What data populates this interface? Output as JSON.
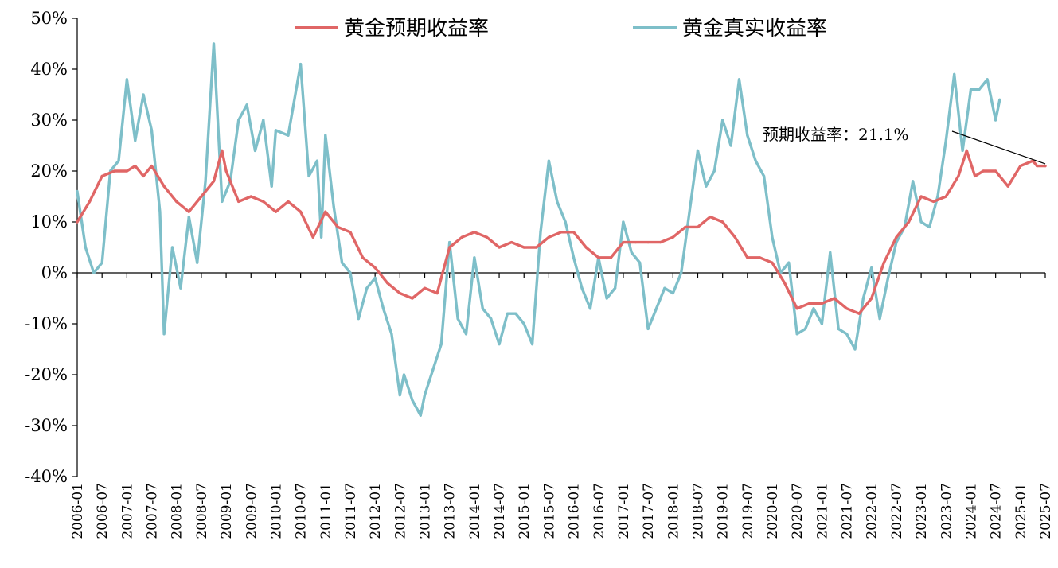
{
  "chart_data": {
    "type": "line",
    "title": "",
    "xlabel": "",
    "ylabel": "",
    "ylim": [
      -40,
      50
    ],
    "yticks": [
      50,
      40,
      30,
      20,
      10,
      0,
      -10,
      -20,
      -30,
      -40
    ],
    "ytick_labels": [
      "50%",
      "40%",
      "30%",
      "20%",
      "10%",
      "0%",
      "-10%",
      "-20%",
      "-30%",
      "-40%"
    ],
    "x_start": "2006-01",
    "x_end": "2025-07",
    "x_tick_labels": [
      "2006-01",
      "2006-07",
      "2007-01",
      "2007-07",
      "2008-01",
      "2008-07",
      "2009-01",
      "2009-07",
      "2010-01",
      "2010-07",
      "2011-01",
      "2011-07",
      "2012-01",
      "2012-07",
      "2013-01",
      "2013-07",
      "2014-01",
      "2014-07",
      "2015-01",
      "2015-07",
      "2016-01",
      "2016-07",
      "2017-01",
      "2017-07",
      "2018-01",
      "2018-07",
      "2019-01",
      "2019-07",
      "2020-01",
      "2020-07",
      "2021-01",
      "2021-07",
      "2022-01",
      "2022-07",
      "2023-01",
      "2023-07",
      "2024-01",
      "2024-07",
      "2025-01",
      "2025-07"
    ],
    "legend": "top-center",
    "series": [
      {
        "name": "黄金预期收益率",
        "color": "#e06666",
        "points": [
          [
            "2006-01",
            10
          ],
          [
            "2006-04",
            14
          ],
          [
            "2006-07",
            19
          ],
          [
            "2006-10",
            20
          ],
          [
            "2007-01",
            20
          ],
          [
            "2007-03",
            21
          ],
          [
            "2007-05",
            19
          ],
          [
            "2007-07",
            21
          ],
          [
            "2007-10",
            17
          ],
          [
            "2008-01",
            14
          ],
          [
            "2008-04",
            12
          ],
          [
            "2008-07",
            15
          ],
          [
            "2008-10",
            18
          ],
          [
            "2008-12",
            24
          ],
          [
            "2009-01",
            20
          ],
          [
            "2009-04",
            14
          ],
          [
            "2009-07",
            15
          ],
          [
            "2009-10",
            14
          ],
          [
            "2010-01",
            12
          ],
          [
            "2010-04",
            14
          ],
          [
            "2010-07",
            12
          ],
          [
            "2010-10",
            7
          ],
          [
            "2011-01",
            12
          ],
          [
            "2011-04",
            9
          ],
          [
            "2011-07",
            8
          ],
          [
            "2011-10",
            3
          ],
          [
            "2012-01",
            1
          ],
          [
            "2012-04",
            -2
          ],
          [
            "2012-07",
            -4
          ],
          [
            "2012-10",
            -5
          ],
          [
            "2013-01",
            -3
          ],
          [
            "2013-04",
            -4
          ],
          [
            "2013-07",
            5
          ],
          [
            "2013-10",
            7
          ],
          [
            "2014-01",
            8
          ],
          [
            "2014-04",
            7
          ],
          [
            "2014-07",
            5
          ],
          [
            "2014-10",
            6
          ],
          [
            "2015-01",
            5
          ],
          [
            "2015-04",
            5
          ],
          [
            "2015-07",
            7
          ],
          [
            "2015-10",
            8
          ],
          [
            "2016-01",
            8
          ],
          [
            "2016-04",
            5
          ],
          [
            "2016-07",
            3
          ],
          [
            "2016-10",
            3
          ],
          [
            "2017-01",
            6
          ],
          [
            "2017-04",
            6
          ],
          [
            "2017-07",
            6
          ],
          [
            "2017-10",
            6
          ],
          [
            "2018-01",
            7
          ],
          [
            "2018-04",
            9
          ],
          [
            "2018-07",
            9
          ],
          [
            "2018-10",
            11
          ],
          [
            "2019-01",
            10
          ],
          [
            "2019-04",
            7
          ],
          [
            "2019-07",
            3
          ],
          [
            "2019-10",
            3
          ],
          [
            "2020-01",
            2
          ],
          [
            "2020-04",
            -2
          ],
          [
            "2020-07",
            -7
          ],
          [
            "2020-10",
            -6
          ],
          [
            "2021-01",
            -6
          ],
          [
            "2021-04",
            -5
          ],
          [
            "2021-07",
            -7
          ],
          [
            "2021-10",
            -8
          ],
          [
            "2022-01",
            -5
          ],
          [
            "2022-04",
            2
          ],
          [
            "2022-07",
            7
          ],
          [
            "2022-10",
            10
          ],
          [
            "2023-01",
            15
          ],
          [
            "2023-04",
            14
          ],
          [
            "2023-07",
            15
          ],
          [
            "2023-10",
            19
          ],
          [
            "2023-12",
            24
          ],
          [
            "2024-02",
            19
          ],
          [
            "2024-04",
            20
          ],
          [
            "2024-07",
            20
          ],
          [
            "2024-10",
            17
          ],
          [
            "2025-01",
            21
          ],
          [
            "2025-04",
            22
          ],
          [
            "2025-05",
            21
          ],
          [
            "2025-07",
            21
          ]
        ]
      },
      {
        "name": "黄金真实收益率",
        "color": "#7ebfc9",
        "points": [
          [
            "2006-01",
            16
          ],
          [
            "2006-03",
            5
          ],
          [
            "2006-05",
            0
          ],
          [
            "2006-07",
            2
          ],
          [
            "2006-09",
            20
          ],
          [
            "2006-11",
            22
          ],
          [
            "2007-01",
            38
          ],
          [
            "2007-03",
            26
          ],
          [
            "2007-05",
            35
          ],
          [
            "2007-07",
            28
          ],
          [
            "2007-09",
            12
          ],
          [
            "2007-10",
            -12
          ],
          [
            "2007-12",
            5
          ],
          [
            "2008-02",
            -3
          ],
          [
            "2008-04",
            11
          ],
          [
            "2008-06",
            2
          ],
          [
            "2008-08",
            18
          ],
          [
            "2008-10",
            45
          ],
          [
            "2008-12",
            14
          ],
          [
            "2009-02",
            18
          ],
          [
            "2009-04",
            30
          ],
          [
            "2009-06",
            33
          ],
          [
            "2009-08",
            24
          ],
          [
            "2009-10",
            30
          ],
          [
            "2009-12",
            17
          ],
          [
            "2010-01",
            28
          ],
          [
            "2010-04",
            27
          ],
          [
            "2010-07",
            41
          ],
          [
            "2010-09",
            19
          ],
          [
            "2010-11",
            22
          ],
          [
            "2010-12",
            7
          ],
          [
            "2011-01",
            27
          ],
          [
            "2011-03",
            13
          ],
          [
            "2011-05",
            2
          ],
          [
            "2011-07",
            0
          ],
          [
            "2011-09",
            -9
          ],
          [
            "2011-11",
            -3
          ],
          [
            "2012-01",
            -1
          ],
          [
            "2012-03",
            -7
          ],
          [
            "2012-05",
            -12
          ],
          [
            "2012-07",
            -24
          ],
          [
            "2012-08",
            -20
          ],
          [
            "2012-10",
            -25
          ],
          [
            "2012-12",
            -28
          ],
          [
            "2013-01",
            -24
          ],
          [
            "2013-03",
            -19
          ],
          [
            "2013-05",
            -14
          ],
          [
            "2013-07",
            6
          ],
          [
            "2013-09",
            -9
          ],
          [
            "2013-11",
            -12
          ],
          [
            "2014-01",
            3
          ],
          [
            "2014-03",
            -7
          ],
          [
            "2014-05",
            -9
          ],
          [
            "2014-07",
            -14
          ],
          [
            "2014-09",
            -8
          ],
          [
            "2014-11",
            -8
          ],
          [
            "2015-01",
            -10
          ],
          [
            "2015-03",
            -14
          ],
          [
            "2015-05",
            8
          ],
          [
            "2015-07",
            22
          ],
          [
            "2015-09",
            14
          ],
          [
            "2015-11",
            10
          ],
          [
            "2016-01",
            3
          ],
          [
            "2016-03",
            -3
          ],
          [
            "2016-05",
            -7
          ],
          [
            "2016-07",
            3
          ],
          [
            "2016-09",
            -5
          ],
          [
            "2016-11",
            -3
          ],
          [
            "2017-01",
            10
          ],
          [
            "2017-03",
            4
          ],
          [
            "2017-05",
            2
          ],
          [
            "2017-07",
            -11
          ],
          [
            "2017-09",
            -7
          ],
          [
            "2017-11",
            -3
          ],
          [
            "2018-01",
            -4
          ],
          [
            "2018-03",
            0
          ],
          [
            "2018-05",
            12
          ],
          [
            "2018-07",
            24
          ],
          [
            "2018-09",
            17
          ],
          [
            "2018-11",
            20
          ],
          [
            "2019-01",
            30
          ],
          [
            "2019-03",
            25
          ],
          [
            "2019-05",
            38
          ],
          [
            "2019-07",
            27
          ],
          [
            "2019-09",
            22
          ],
          [
            "2019-11",
            19
          ],
          [
            "2020-01",
            7
          ],
          [
            "2020-03",
            0
          ],
          [
            "2020-05",
            2
          ],
          [
            "2020-07",
            -12
          ],
          [
            "2020-09",
            -11
          ],
          [
            "2020-11",
            -7
          ],
          [
            "2021-01",
            -10
          ],
          [
            "2021-03",
            4
          ],
          [
            "2021-05",
            -11
          ],
          [
            "2021-07",
            -12
          ],
          [
            "2021-09",
            -15
          ],
          [
            "2021-11",
            -5
          ],
          [
            "2022-01",
            1
          ],
          [
            "2022-03",
            -9
          ],
          [
            "2022-05",
            -1
          ],
          [
            "2022-07",
            6
          ],
          [
            "2022-09",
            9
          ],
          [
            "2022-11",
            18
          ],
          [
            "2023-01",
            10
          ],
          [
            "2023-03",
            9
          ],
          [
            "2023-05",
            15
          ],
          [
            "2023-07",
            26
          ],
          [
            "2023-09",
            39
          ],
          [
            "2023-11",
            24
          ],
          [
            "2024-01",
            36
          ],
          [
            "2024-03",
            36
          ],
          [
            "2024-05",
            38
          ],
          [
            "2024-07",
            30
          ],
          [
            "2024-08",
            34
          ]
        ]
      }
    ],
    "annotation": {
      "text": "预期收益率：21.1%",
      "value": 21.1,
      "points_to": "2025-07"
    }
  }
}
